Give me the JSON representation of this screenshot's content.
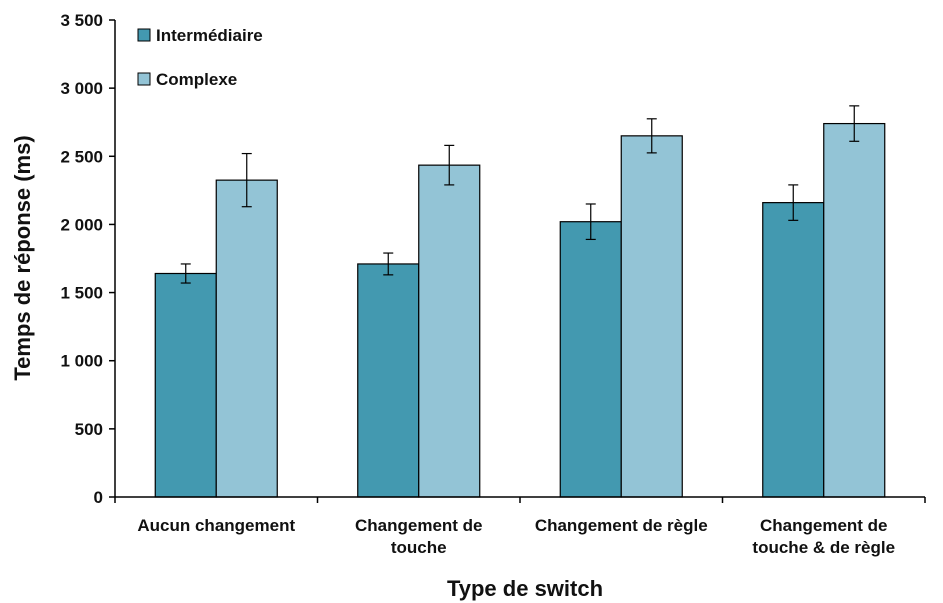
{
  "chart_data": {
    "type": "bar",
    "categories": [
      [
        "Aucun changement"
      ],
      [
        "Changement de",
        "touche"
      ],
      [
        "Changement de règle"
      ],
      [
        "Changement de",
        "touche & de règle"
      ]
    ],
    "series": [
      {
        "name": "Intermédiaire",
        "color": "#4399b0",
        "values": [
          1640,
          1710,
          2020,
          2160
        ],
        "errors": [
          70,
          80,
          130,
          130
        ]
      },
      {
        "name": "Complexe",
        "color": "#93c4d6",
        "values": [
          2325,
          2435,
          2650,
          2740
        ],
        "errors": [
          195,
          145,
          125,
          130
        ]
      }
    ],
    "xlabel": "Type de switch",
    "ylabel": "Temps de réponse (ms)",
    "ylim": [
      0,
      3500
    ],
    "yticks": [
      0,
      500,
      1000,
      1500,
      2000,
      2500,
      3000,
      3500
    ],
    "ytick_labels": [
      "0",
      "500",
      "1 000",
      "1 500",
      "2 000",
      "2 500",
      "3 000",
      "3 500"
    ],
    "grid": false,
    "legend_position": "top-left"
  }
}
